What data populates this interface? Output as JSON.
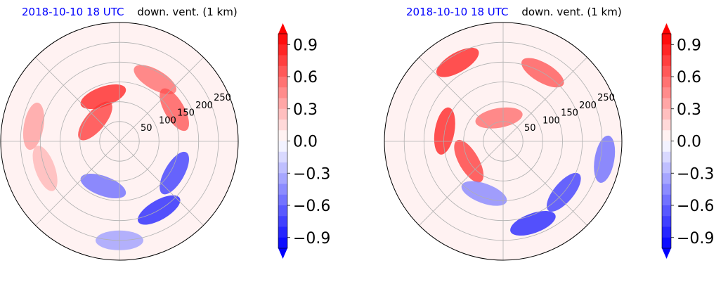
{
  "colors": {
    "positive": "#ff0000",
    "negative": "#0000ff",
    "zero": "#ffffff",
    "grid": "#b0b0b0",
    "title_time": "#0000ff"
  },
  "chart_data": [
    {
      "type": "heatmap",
      "projection": "polar",
      "title_time": "2018-10-10 18 UTC",
      "title_var": "down. vent. (1 km)",
      "radial_ticks": [
        "50",
        "100",
        "150",
        "200",
        "250"
      ],
      "radial_values": [
        50,
        100,
        150,
        200,
        250
      ],
      "rlim": [
        0,
        300
      ],
      "grid": true,
      "colorbar": {
        "ticks": [
          "0.9",
          "0.6",
          "0.3",
          "0.0",
          "−0.3",
          "−0.6",
          "−0.9"
        ],
        "values": [
          0.9,
          0.6,
          0.3,
          0.0,
          -0.3,
          -0.6,
          -0.9
        ],
        "range": [
          -1.0,
          1.0
        ],
        "extend": "both",
        "cmap": "bwr"
      },
      "field": [
        {
          "r": 120,
          "theta": 110,
          "value": 0.9
        },
        {
          "r": 80,
          "theta": 140,
          "value": 0.8
        },
        {
          "r": 180,
          "theta": 60,
          "value": 0.6
        },
        {
          "r": 160,
          "theta": 30,
          "value": 0.7
        },
        {
          "r": 220,
          "theta": 170,
          "value": 0.4
        },
        {
          "r": 200,
          "theta": 200,
          "value": 0.3
        },
        {
          "r": 120,
          "theta": 250,
          "value": -0.6
        },
        {
          "r": 200,
          "theta": 300,
          "value": -0.9
        },
        {
          "r": 160,
          "theta": 330,
          "value": -0.8
        },
        {
          "r": 250,
          "theta": 270,
          "value": -0.4
        }
      ]
    },
    {
      "type": "heatmap",
      "projection": "polar",
      "title_time": "2018-10-10 18 UTC",
      "title_var": "down. vent. (1 km)",
      "radial_ticks": [
        "50",
        "100",
        "150",
        "200",
        "250"
      ],
      "radial_values": [
        50,
        100,
        150,
        200,
        250
      ],
      "rlim": [
        0,
        300
      ],
      "grid": true,
      "colorbar": {
        "ticks": [
          "0.9",
          "0.6",
          "0.3",
          "0.0",
          "−0.3",
          "−0.6",
          "−0.9"
        ],
        "values": [
          0.9,
          0.6,
          0.3,
          0.0,
          -0.3,
          -0.6,
          -0.9
        ],
        "range": [
          -1.0,
          1.0
        ],
        "extend": "both",
        "cmap": "bwr"
      },
      "field": [
        {
          "r": 230,
          "theta": 120,
          "value": 0.9
        },
        {
          "r": 150,
          "theta": 170,
          "value": 0.9
        },
        {
          "r": 100,
          "theta": 210,
          "value": 0.8
        },
        {
          "r": 200,
          "theta": 60,
          "value": 0.7
        },
        {
          "r": 60,
          "theta": 100,
          "value": 0.6
        },
        {
          "r": 200,
          "theta": 320,
          "value": -0.8
        },
        {
          "r": 220,
          "theta": 290,
          "value": -0.9
        },
        {
          "r": 140,
          "theta": 250,
          "value": -0.5
        },
        {
          "r": 260,
          "theta": 350,
          "value": -0.6
        }
      ]
    }
  ]
}
